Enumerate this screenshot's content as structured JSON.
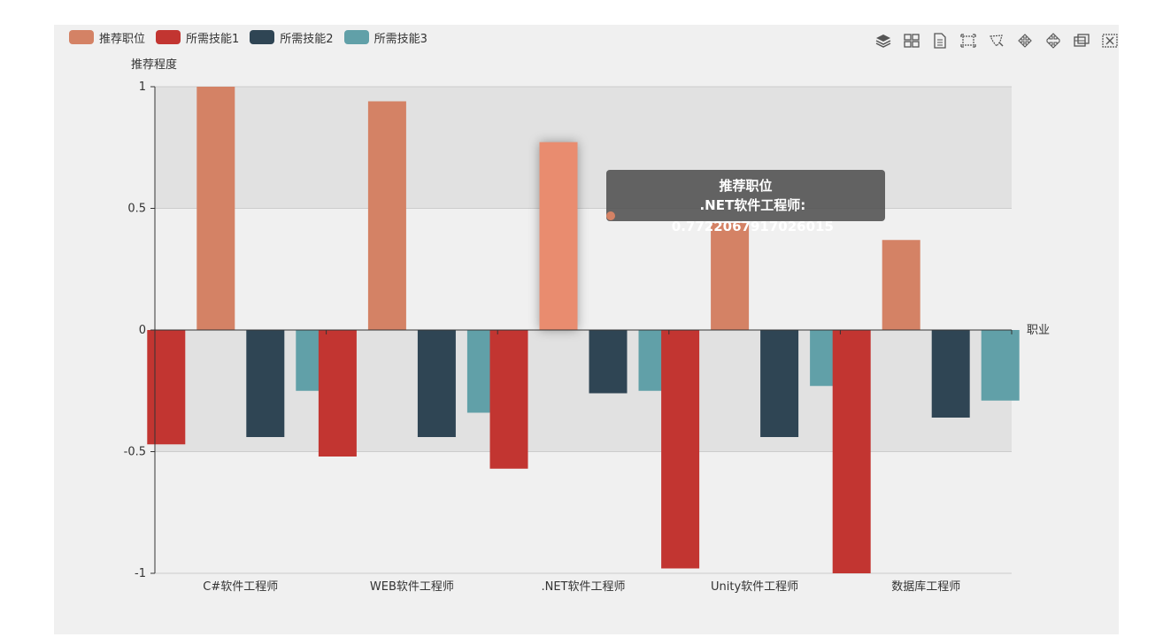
{
  "chart_data": {
    "type": "bar",
    "ylabel": "推荐程度",
    "xlabel": "职业",
    "ylim": [
      -1,
      1
    ],
    "yticks": [
      1,
      0.5,
      0,
      -0.5,
      -1
    ],
    "ytick_labels": [
      "1",
      "0.5",
      "0",
      "-0.5",
      "-1"
    ],
    "categories": [
      "C#软件工程师",
      "WEB软件工程师",
      ".NET软件工程师",
      "Unity软件工程师",
      "数据库工程师"
    ],
    "series": [
      {
        "name": "推荐职位",
        "color": "#d48265",
        "values": [
          1.0,
          0.94,
          0.7722067917026015,
          0.44,
          0.37
        ]
      },
      {
        "name": "所需技能1",
        "color": "#c23531",
        "values": [
          -0.47,
          -0.52,
          -0.57,
          -0.98,
          -1.0
        ]
      },
      {
        "name": "所需技能2",
        "color": "#2f4554",
        "values": [
          -0.44,
          -0.44,
          -0.26,
          -0.44,
          -0.36
        ]
      },
      {
        "name": "所需技能3",
        "color": "#61a0a8",
        "values": [
          -0.25,
          -0.34,
          -0.25,
          -0.23,
          -0.29
        ]
      }
    ],
    "grid": true,
    "legend": "top-left",
    "highlighted": {
      "series": 0,
      "category": 2,
      "color": "#e98c6f"
    }
  },
  "tooltip": {
    "title": "推荐职位",
    "text": ".NET软件工程师: 0.7722067917026015",
    "dot_color": "#d48265"
  },
  "toolbox": {
    "icons": [
      "stack-icon",
      "tiled-icon",
      "data-view-icon",
      "zoom-icon",
      "lasso-select-icon",
      "restore-icon",
      "refresh-icon",
      "save-image-icon",
      "clear-icon"
    ]
  },
  "colors": {
    "panel_bg": "#f0f0f0",
    "band_dark": "#e1e1e1",
    "band_light": "#f0f0f0",
    "axis": "#333333"
  }
}
